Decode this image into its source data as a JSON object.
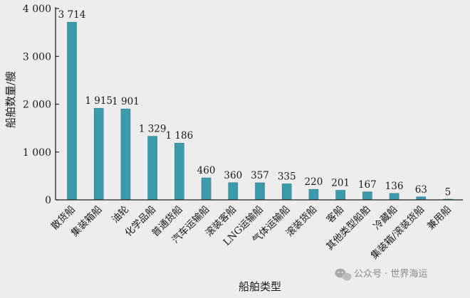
{
  "chart_data": {
    "type": "bar",
    "categories": [
      "散货船",
      "集装箱船",
      "油轮",
      "化学品船",
      "普通货船",
      "汽车运输船",
      "滚装客船",
      "LNG运输船",
      "气体运输船",
      "滚装货船",
      "客船",
      "其他类型船舶",
      "冷藏船",
      "集装箱/滚装货船",
      "兼用船"
    ],
    "values": [
      3714,
      1915,
      1901,
      1329,
      1186,
      460,
      360,
      357,
      335,
      220,
      201,
      167,
      136,
      63,
      5
    ],
    "value_labels": [
      "3 714",
      "1 915",
      "1 901",
      "1 329",
      "1 186",
      "460",
      "360",
      "357",
      "335",
      "220",
      "201",
      "167",
      "136",
      "63",
      "5"
    ],
    "title": "",
    "xlabel": "船舶类型",
    "ylabel": "船舶数量/艘",
    "ylim": [
      0,
      4000
    ],
    "yticks": [
      0,
      1000,
      2000,
      3000,
      4000
    ],
    "ytick_labels": [
      "0",
      "1 000",
      "2 000",
      "3 000",
      "4 000"
    ],
    "bar_color": "#3b9aab",
    "grid": false,
    "legend": "none"
  },
  "watermark": {
    "icon": "wechat-icon",
    "text": "公众号 · 世界海运"
  }
}
